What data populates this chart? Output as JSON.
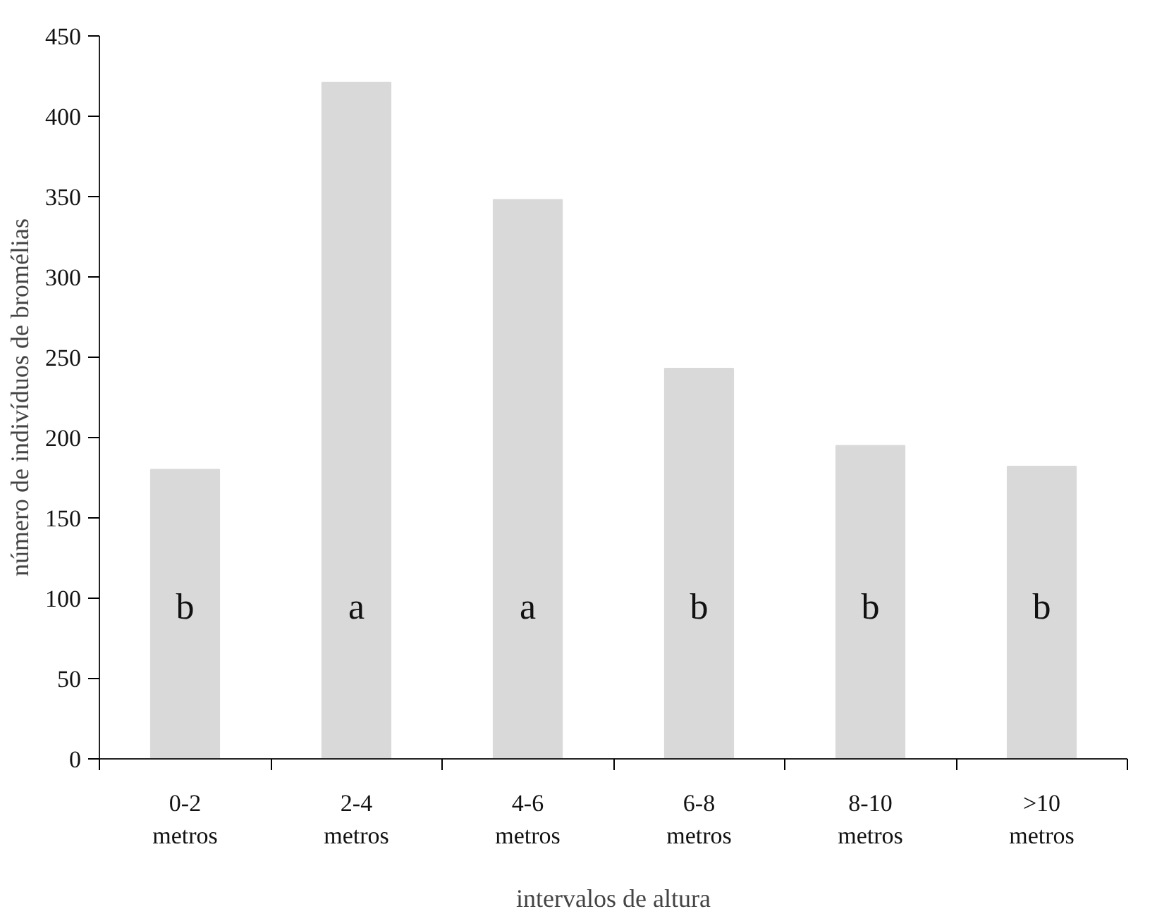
{
  "chart_data": {
    "type": "bar",
    "xlabel": "intervalos de altura",
    "ylabel": "número de indivíduos de bromélias",
    "categories": [
      "0-2 metros",
      "2-4 metros",
      "4-6 metros",
      "6-8 metros",
      "8-10 metros",
      ">10 metros"
    ],
    "values": [
      180,
      421,
      348,
      243,
      195,
      182
    ],
    "color": "#d9d9d9",
    "ylim": [
      0,
      450
    ],
    "yticks": [
      0,
      50,
      100,
      150,
      200,
      250,
      300,
      350,
      400,
      450
    ],
    "grid": false,
    "annotations": [
      "b",
      "a",
      "a",
      "b",
      "b",
      "b"
    ]
  }
}
